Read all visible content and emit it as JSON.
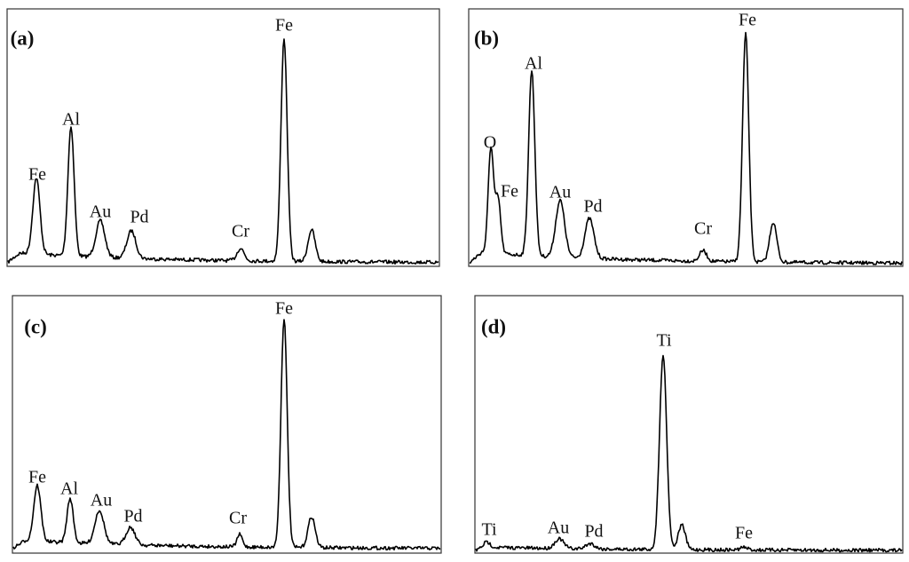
{
  "panels": [
    {
      "label": "(a)",
      "peaks": [
        "Fe",
        "Al",
        "Au",
        "Pd",
        "Cr",
        "Fe"
      ]
    },
    {
      "label": "(b)",
      "peaks": [
        "O",
        "Fe",
        "Al",
        "Au",
        "Pd",
        "Cr",
        "Fe"
      ]
    },
    {
      "label": "(c)",
      "peaks": [
        "Fe",
        "Al",
        "Au",
        "Pd",
        "Cr",
        "Fe"
      ]
    },
    {
      "label": "(d)",
      "peaks": [
        "Ti",
        "Au",
        "Pd",
        "Ti",
        "Fe"
      ]
    }
  ]
}
